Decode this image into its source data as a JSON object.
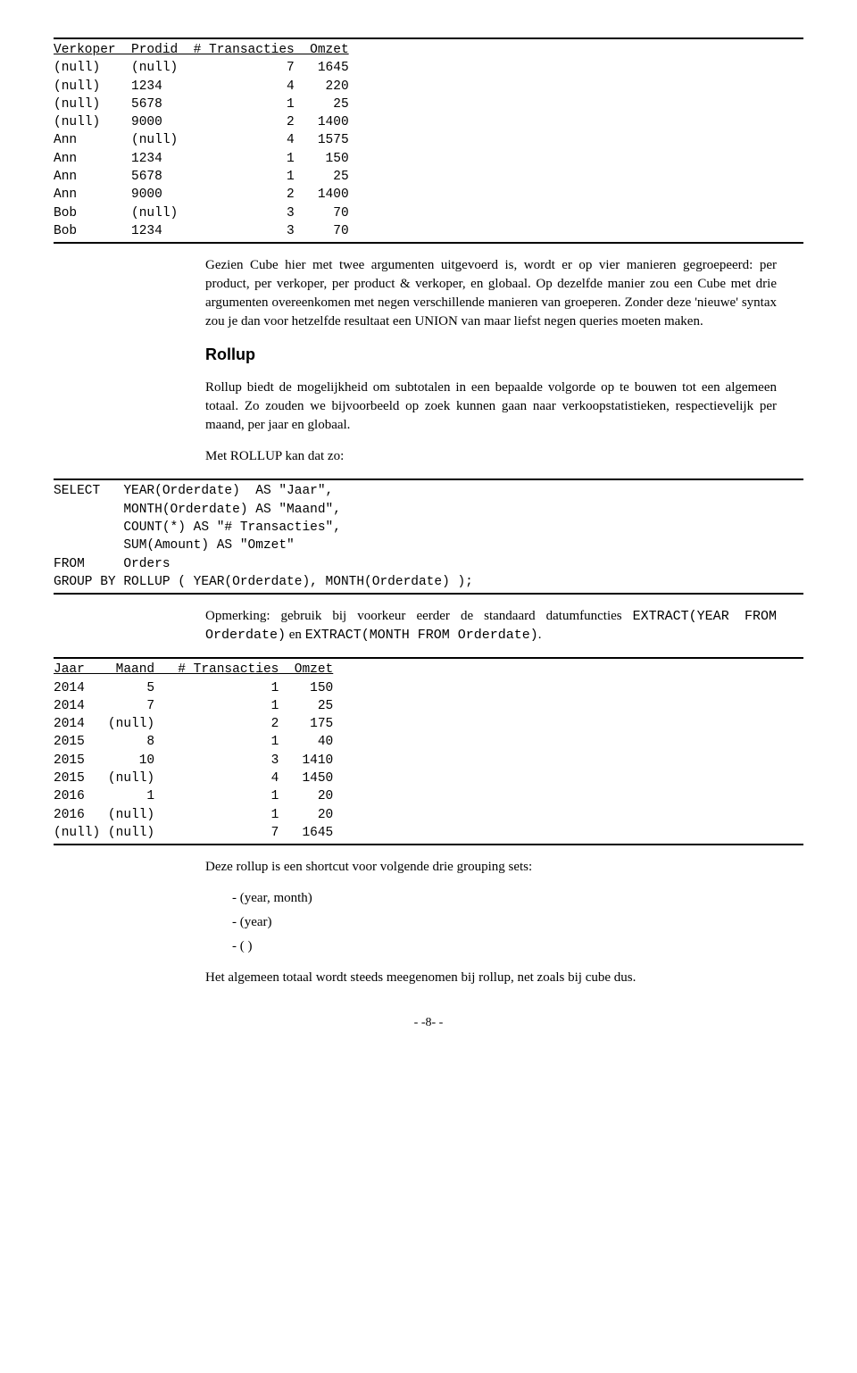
{
  "table1": {
    "header": "Verkoper  Prodid  # Transacties  Omzet",
    "rows": [
      "(null)    (null)              7   1645",
      "(null)    1234                4    220",
      "(null)    5678                1     25",
      "(null)    9000                2   1400",
      "Ann       (null)              4   1575",
      "Ann       1234                1    150",
      "Ann       5678                1     25",
      "Ann       9000                2   1400",
      "Bob       (null)              3     70",
      "Bob       1234                3     70"
    ]
  },
  "para1": "Gezien Cube hier met twee argumenten uitgevoerd is, wordt er op vier manieren gegroepeerd: per product, per verkoper, per product & verkoper, en globaal. Op dezelfde manier zou een Cube met drie argumenten overeenkomen met negen verschillende manieren van groeperen. Zonder deze 'nieuwe' syntax zou je dan voor hetzelfde resultaat een UNION van maar liefst negen queries moeten maken.",
  "heading_rollup": "Rollup",
  "para2": "Rollup biedt de mogelijkheid om subtotalen in een bepaalde volgorde op te bouwen tot een algemeen totaal. Zo zouden we bijvoorbeeld op zoek kunnen gaan naar verkoopstatistieken, respectievelijk per maand, per jaar en globaal.",
  "para3": "Met ROLLUP kan dat zo:",
  "code1": "SELECT   YEAR(Orderdate)  AS \"Jaar\",\n         MONTH(Orderdate) AS \"Maand\",\n         COUNT(*) AS \"# Transacties\",\n         SUM(Amount) AS \"Omzet\"\nFROM     Orders\nGROUP BY ROLLUP ( YEAR(Orderdate), MONTH(Orderdate) );",
  "note_prefix": "Opmerking: gebruik bij voorkeur eerder de standaard datumfuncties ",
  "note_code1": "EXTRACT(YEAR FROM Orderdate)",
  "note_mid": " en ",
  "note_code2": "EXTRACT(MONTH FROM Orderdate)",
  "note_end": ".",
  "table2": {
    "header": "Jaar    Maand   # Transacties  Omzet",
    "rows": [
      "2014        5               1    150",
      "2014        7               1     25",
      "2014   (null)               2    175",
      "2015        8               1     40",
      "2015       10               3   1410",
      "2015   (null)               4   1450",
      "2016        1               1     20",
      "2016   (null)               1     20",
      "(null) (null)               7   1645"
    ]
  },
  "para4": "Deze rollup is een shortcut voor volgende drie grouping sets:",
  "bullet1": "- (year, month)",
  "bullet2": "- (year)",
  "bullet3": "- ( )",
  "para5": "Het algemeen totaal wordt steeds meegenomen bij rollup, net zoals bij cube dus.",
  "page_number": "- -8- -"
}
